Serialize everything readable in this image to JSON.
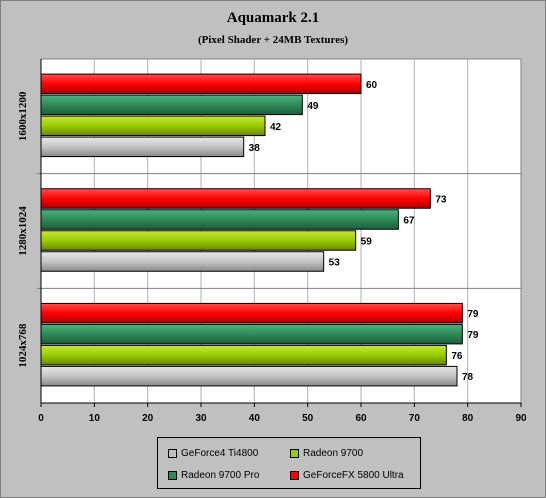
{
  "chart_data": {
    "type": "bar",
    "orientation": "horizontal",
    "title": "Aquamark 2.1",
    "subtitle": "(Pixel Shader + 24MB Textures)",
    "categories": [
      "1600x1200",
      "1280x1024",
      "1024x768"
    ],
    "series": [
      {
        "name": "GeForceFX 5800 Ultra",
        "color": "#ff0000",
        "values": [
          60,
          73,
          79
        ]
      },
      {
        "name": "Radeon 9700 Pro",
        "color": "#2e8b57",
        "values": [
          49,
          67,
          79
        ]
      },
      {
        "name": "Radeon 9700",
        "color": "#99cc00",
        "values": [
          42,
          59,
          76
        ]
      },
      {
        "name": "GeForce4 Ti4800",
        "color": "#c0c0c0",
        "values": [
          38,
          53,
          78
        ]
      }
    ],
    "xlim": [
      0,
      90
    ],
    "xticks": [
      "0",
      "10",
      "20",
      "30",
      "40",
      "50",
      "60",
      "70",
      "80",
      "90"
    ],
    "grid": true,
    "legend_position": "bottom"
  },
  "legend": [
    {
      "label": "GeForce4 Ti4800",
      "color": "#c0c0c0"
    },
    {
      "label": "Radeon 9700",
      "color": "#99cc00"
    },
    {
      "label": "Radeon 9700 Pro",
      "color": "#2e8b57"
    },
    {
      "label": "GeForceFX 5800 Ultra",
      "color": "#ff0000"
    }
  ]
}
